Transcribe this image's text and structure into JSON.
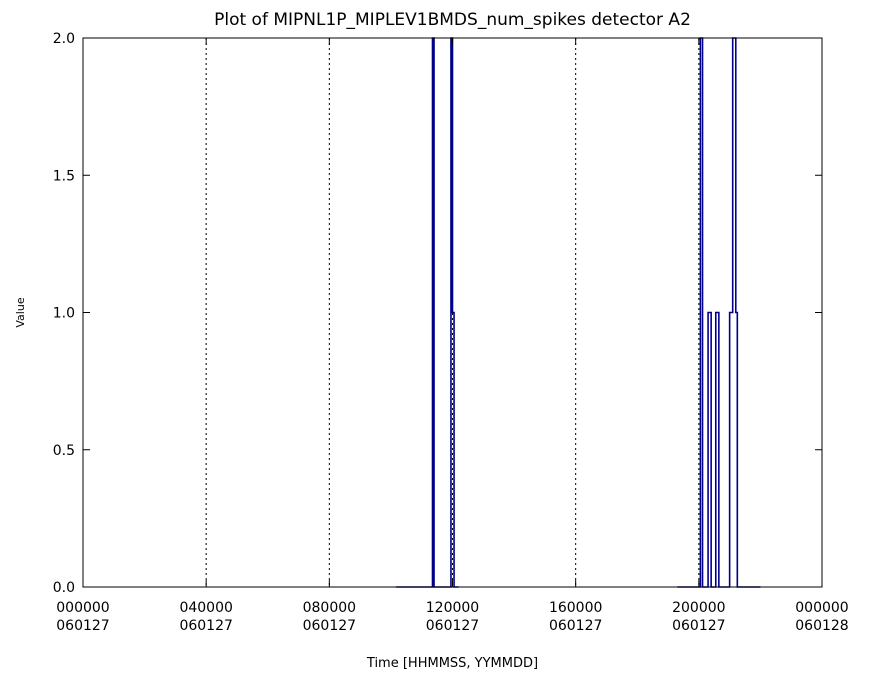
{
  "chart_data": {
    "type": "line",
    "title": "Plot of  MIPNL1P_MIPLEV1BMDS_num_spikes detector A2",
    "xlabel": "Time [HHMMSS, YYMMDD]",
    "ylabel": "Value",
    "xlim": [
      0,
      24
    ],
    "ylim": [
      0,
      2.0
    ],
    "x_unit": "hours since 000000 060127",
    "x_ticks": [
      {
        "value": 0,
        "time": "000000",
        "date": "060127"
      },
      {
        "value": 4,
        "time": "040000",
        "date": "060127"
      },
      {
        "value": 8,
        "time": "080000",
        "date": "060127"
      },
      {
        "value": 12,
        "time": "120000",
        "date": "060127"
      },
      {
        "value": 16,
        "time": "160000",
        "date": "060127"
      },
      {
        "value": 20,
        "time": "200000",
        "date": "060127"
      },
      {
        "value": 24,
        "time": "000000",
        "date": "060128"
      }
    ],
    "y_ticks": [
      "0.0",
      "0.5",
      "1.0",
      "1.5",
      "2.0"
    ],
    "y_tick_values": [
      0,
      0.5,
      1.0,
      1.5,
      2.0
    ],
    "vertical_dotted_lines": [
      4,
      8,
      12,
      16,
      20
    ],
    "series": [
      {
        "color": "#00008b",
        "segments": [
          {
            "x": [
              10.17,
              11.35,
              11.35,
              11.4,
              11.4,
              11.95,
              11.95,
              12.0,
              12.0,
              12.05,
              12.05,
              12.2
            ],
            "y": [
              0,
              0,
              2.0,
              2.0,
              0,
              0,
              2.0,
              2.0,
              1.0,
              1.0,
              0,
              0
            ]
          },
          {
            "x": [
              19.3,
              20.05,
              20.05,
              20.12,
              20.12,
              20.3,
              20.3,
              20.4,
              20.4,
              20.55,
              20.55,
              20.65,
              20.65,
              21.0,
              21.0,
              21.1,
              21.1,
              21.2,
              21.2,
              21.25,
              21.25,
              22.0
            ],
            "y": [
              0,
              0,
              2.0,
              2.0,
              0,
              0,
              1.0,
              1.0,
              0,
              0,
              1.0,
              1.0,
              0,
              0,
              1.0,
              1.0,
              2.0,
              2.0,
              1.0,
              1.0,
              0,
              0
            ]
          }
        ]
      }
    ],
    "grid": false,
    "legend": "none"
  }
}
